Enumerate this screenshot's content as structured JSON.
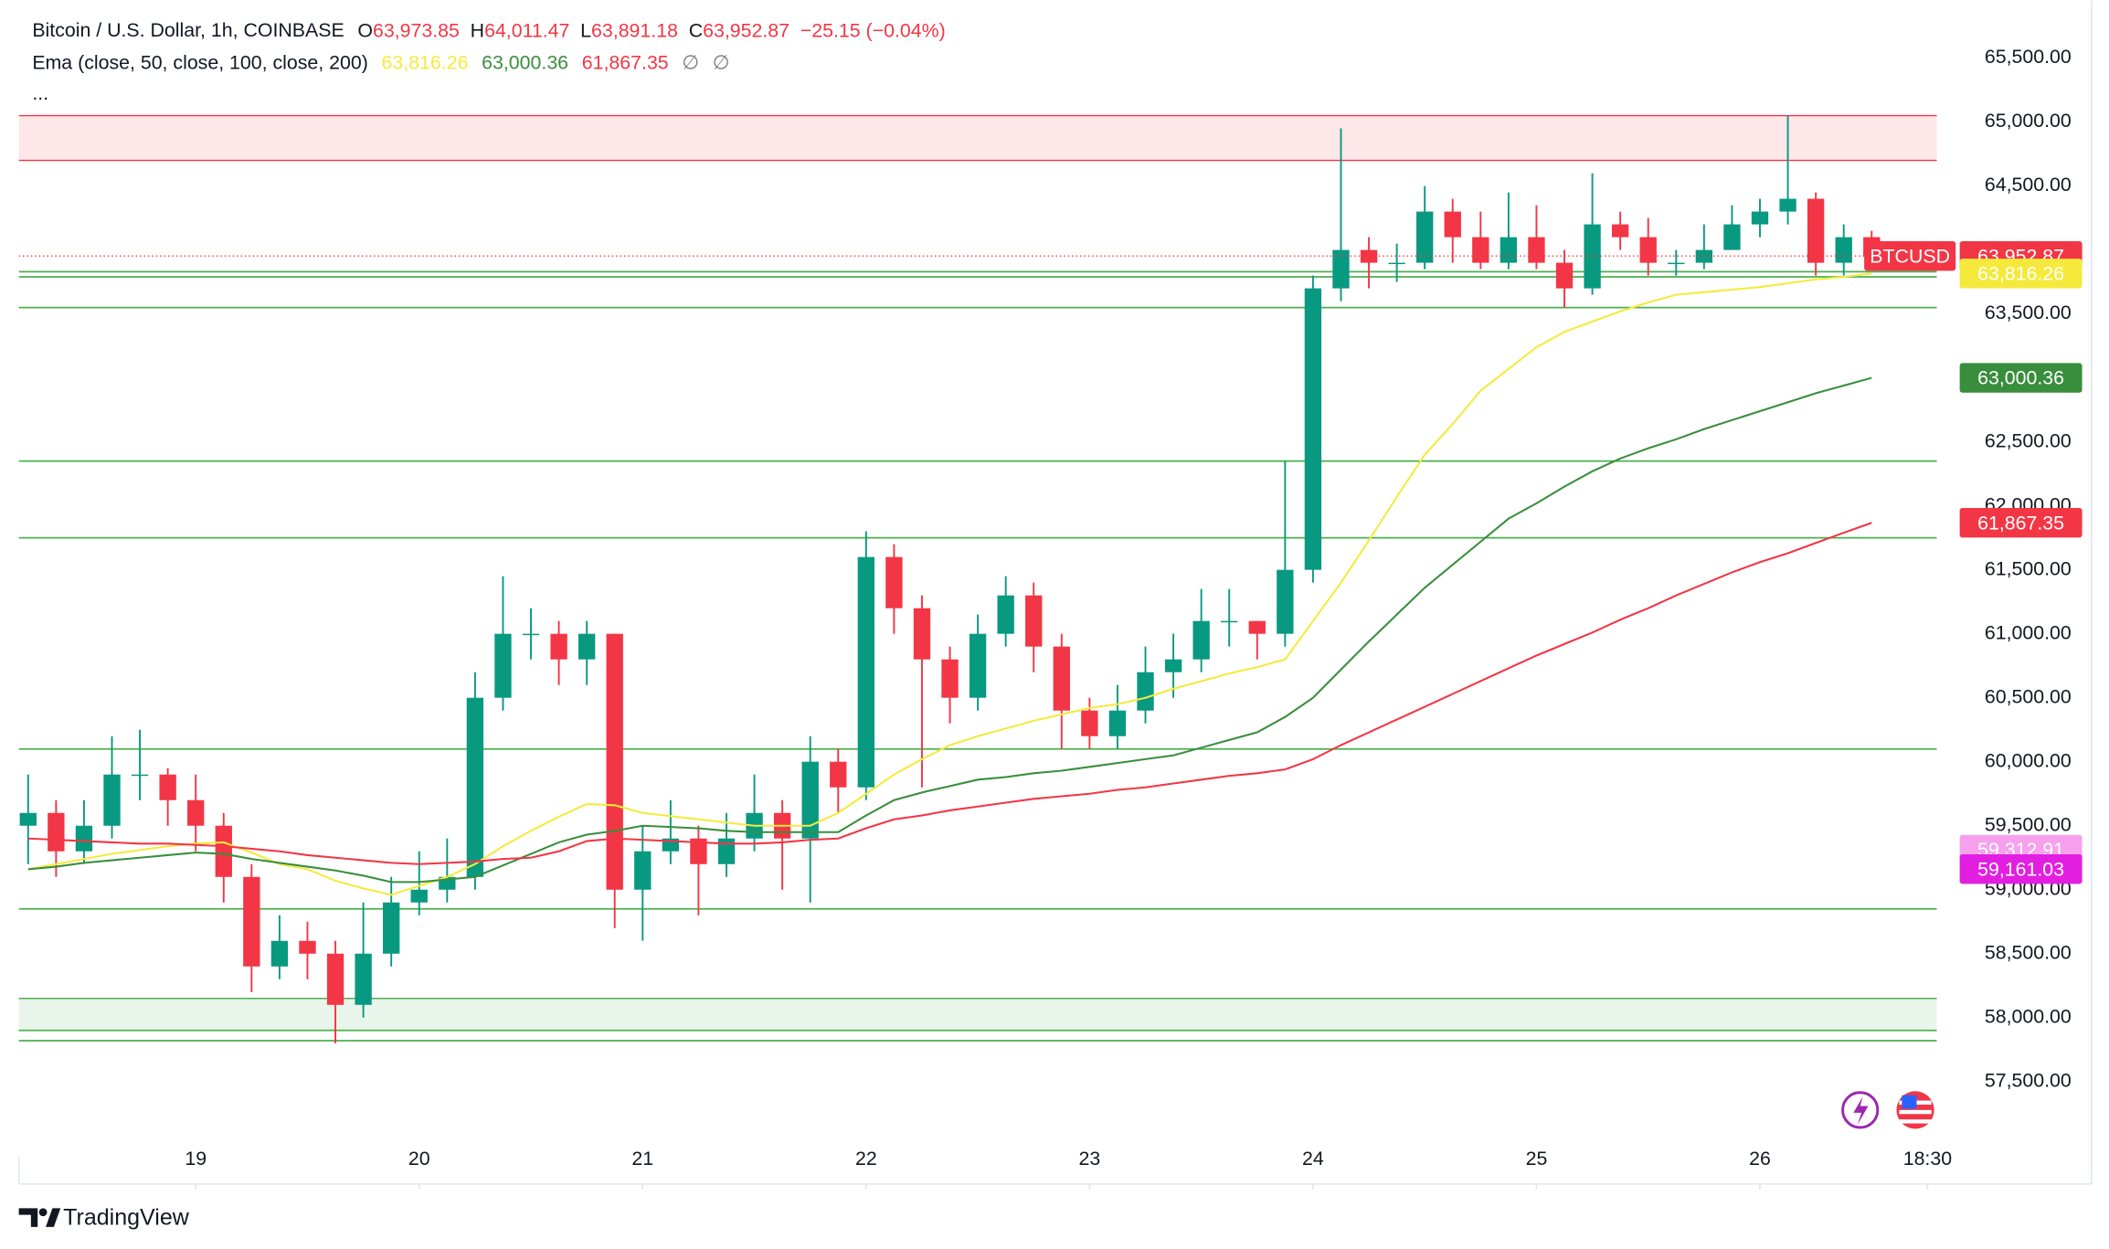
{
  "chart_data": {
    "type": "candlestick",
    "title": "Bitcoin / U.S. Dollar, 1h, COINBASE",
    "ohlc": [
      {
        "label": "O",
        "value": "63,973.85"
      },
      {
        "label": "H",
        "value": "64,011.47"
      },
      {
        "label": "L",
        "value": "63,891.18"
      },
      {
        "label": "C",
        "value": "63,952.87"
      }
    ],
    "change": "−25.15 (−0.04%)",
    "ema_label": "Ema (close, 50, close, 100, close, 200)",
    "ema_extra": [
      "∅",
      "∅"
    ],
    "more": "...",
    "up_color": "#089981",
    "down_color": "#f23645",
    "x": [
      -18,
      -15,
      -12,
      -9,
      -6,
      -3,
      0,
      3,
      6,
      9,
      12,
      15,
      18,
      21,
      24,
      27,
      30,
      33,
      36,
      39,
      42,
      45,
      48,
      51,
      54,
      57,
      60,
      63,
      66,
      69,
      72,
      75,
      78,
      81,
      84,
      87,
      90,
      93,
      96,
      99,
      102,
      105,
      108,
      111,
      114,
      117,
      120,
      123,
      126,
      129,
      132,
      135,
      138,
      141,
      144,
      147,
      150,
      153,
      156,
      159,
      162,
      165,
      168,
      171,
      174,
      177,
      180
    ],
    "open": [
      59500,
      59600,
      59300,
      59500,
      59900,
      59900,
      59700,
      59500,
      59100,
      58400,
      58600,
      58500,
      58100,
      58500,
      58900,
      59000,
      59100,
      60500,
      61000,
      61000,
      60800,
      61000,
      59000,
      59300,
      59400,
      59200,
      59400,
      59600,
      59400,
      60000,
      59800,
      61600,
      61200,
      60800,
      60500,
      61000,
      61300,
      60900,
      60400,
      60200,
      60400,
      60700,
      60800,
      61100,
      61100,
      61000,
      61500,
      63700,
      64000,
      63900,
      63900,
      64300,
      64100,
      63900,
      64100,
      63900,
      63700,
      64200,
      64100,
      63900,
      63900,
      64000,
      64200,
      64300,
      64400,
      63900,
      64100
    ],
    "high": [
      59900,
      59700,
      59700,
      60200,
      60250,
      59950,
      59900,
      59600,
      59200,
      58800,
      58750,
      58600,
      58900,
      59100,
      59300,
      59400,
      60700,
      61450,
      61200,
      61100,
      61100,
      61000,
      59500,
      59700,
      59500,
      59600,
      59900,
      59700,
      60200,
      60100,
      61800,
      61700,
      61300,
      60900,
      61150,
      61450,
      61400,
      61000,
      60500,
      60600,
      60900,
      61000,
      61350,
      61350,
      61100,
      62350,
      63800,
      64950,
      64100,
      64050,
      64500,
      64400,
      64300,
      64450,
      64350,
      64000,
      64600,
      64300,
      64250,
      64000,
      64200,
      64350,
      64400,
      65050,
      64450,
      64200,
      64150
    ],
    "low": [
      59200,
      59100,
      59200,
      59400,
      59700,
      59500,
      59300,
      58900,
      58200,
      58300,
      58300,
      57800,
      58000,
      58400,
      58800,
      58900,
      59000,
      60400,
      60800,
      60600,
      60600,
      58700,
      58600,
      59200,
      58800,
      59100,
      59300,
      59000,
      58900,
      59600,
      59700,
      61000,
      59800,
      60300,
      60400,
      60900,
      60700,
      60100,
      60100,
      60100,
      60300,
      60500,
      60700,
      60900,
      60800,
      60900,
      61400,
      63600,
      63700,
      63750,
      63850,
      63900,
      63850,
      63850,
      63850,
      63550,
      63650,
      64000,
      63800,
      63800,
      63850,
      64000,
      64100,
      64200,
      63800,
      63800,
      63850
    ],
    "close": [
      59600,
      59300,
      59500,
      59900,
      59900,
      59700,
      59500,
      59100,
      58400,
      58600,
      58500,
      58100,
      58500,
      58900,
      59000,
      59100,
      60500,
      61000,
      61000,
      60800,
      61000,
      59000,
      59300,
      59400,
      59200,
      59400,
      59600,
      59400,
      60000,
      59800,
      61600,
      61200,
      60800,
      60500,
      61000,
      61300,
      60900,
      60400,
      60200,
      60400,
      60700,
      60800,
      61100,
      61100,
      61000,
      61500,
      63700,
      64000,
      63900,
      63900,
      64300,
      64100,
      63900,
      64100,
      63900,
      63700,
      64200,
      64100,
      63900,
      63900,
      64000,
      64200,
      64300,
      64400,
      63900,
      64100,
      63952.87
    ],
    "ema_series": [
      {
        "color": "#f5ea3c",
        "tag_text_color": "#131722",
        "last_label": "63,816.26",
        "values": [
          59160,
          59200,
          59240,
          59280,
          59310,
          59340,
          59360,
          59370,
          59290,
          59200,
          59160,
          59070,
          59010,
          58960,
          59030,
          59100,
          59200,
          59340,
          59460,
          59570,
          59670,
          59660,
          59600,
          59575,
          59550,
          59525,
          59500,
          59500,
          59500,
          59600,
          59750,
          59900,
          60020,
          60130,
          60200,
          60260,
          60320,
          60370,
          60420,
          60450,
          60500,
          60570,
          60630,
          60690,
          60740,
          60800,
          61100,
          61400,
          61730,
          62070,
          62400,
          62640,
          62900,
          63070,
          63240,
          63360,
          63440,
          63520,
          63590,
          63650,
          63670,
          63690,
          63710,
          63740,
          63770,
          63790,
          63816.26
        ]
      },
      {
        "color": "#388e3c",
        "tag_text_color": "#ffffff",
        "last_label": "63,000.36",
        "values": [
          59160,
          59180,
          59210,
          59230,
          59250,
          59270,
          59290,
          59280,
          59240,
          59210,
          59180,
          59150,
          59110,
          59060,
          59060,
          59080,
          59100,
          59190,
          59280,
          59370,
          59430,
          59460,
          59500,
          59490,
          59480,
          59460,
          59450,
          59450,
          59450,
          59450,
          59580,
          59700,
          59760,
          59810,
          59860,
          59880,
          59910,
          59930,
          59960,
          59990,
          60020,
          60050,
          60110,
          60170,
          60230,
          60350,
          60500,
          60720,
          60940,
          61150,
          61360,
          61540,
          61720,
          61900,
          62020,
          62150,
          62270,
          62370,
          62450,
          62520,
          62600,
          62670,
          62740,
          62810,
          62880,
          62940,
          63000.36
        ]
      },
      {
        "color": "#f23645",
        "tag_text_color": "#ffffff",
        "last_label": "61,867.35",
        "values": [
          59400,
          59390,
          59380,
          59370,
          59360,
          59360,
          59350,
          59340,
          59320,
          59300,
          59270,
          59250,
          59230,
          59210,
          59200,
          59210,
          59220,
          59240,
          59250,
          59300,
          59380,
          59400,
          59390,
          59380,
          59370,
          59360,
          59360,
          59370,
          59390,
          59400,
          59480,
          59550,
          59580,
          59620,
          59650,
          59680,
          59710,
          59730,
          59750,
          59780,
          59800,
          59830,
          59860,
          59890,
          59910,
          59940,
          60020,
          60130,
          60230,
          60330,
          60430,
          60530,
          60630,
          60730,
          60830,
          60920,
          61010,
          61110,
          61200,
          61300,
          61390,
          61480,
          61560,
          61630,
          61710,
          61790,
          61867.35
        ]
      }
    ],
    "symbol": "BTCUSD",
    "last_price": 63952.87,
    "last_price_label": "63,952.87",
    "extra_tags": [
      {
        "value": 59312.91,
        "label": "59,312.91",
        "color": "#f7a1ee"
      },
      {
        "value": 59161.03,
        "label": "59,161.03",
        "color": "#e21ee0"
      }
    ],
    "resistance_zone": [
      64700,
      65050
    ],
    "support_zone": [
      57900,
      58150
    ],
    "levels": [
      63830,
      63790,
      63550,
      62350,
      61750,
      60100,
      58850,
      57900,
      57820
    ],
    "xlim": [
      -19,
      187
    ],
    "ylim": [
      56700,
      65950
    ],
    "xticks": [
      {
        "value": 0,
        "label": "19"
      },
      {
        "value": 24,
        "label": "20"
      },
      {
        "value": 48,
        "label": "21"
      },
      {
        "value": 72,
        "label": "22"
      },
      {
        "value": 96,
        "label": "23"
      },
      {
        "value": 120,
        "label": "24"
      },
      {
        "value": 144,
        "label": "25"
      },
      {
        "value": 168,
        "label": "26"
      },
      {
        "value": 186,
        "label": "18:30"
      }
    ],
    "yticks": [
      {
        "value": 57500,
        "label": "57,500.00"
      },
      {
        "value": 58000,
        "label": "58,000.00"
      },
      {
        "value": 58500,
        "label": "58,500.00"
      },
      {
        "value": 59000,
        "label": "59,000.00"
      },
      {
        "value": 59500,
        "label": "59,500.00"
      },
      {
        "value": 60000,
        "label": "60,000.00"
      },
      {
        "value": 60500,
        "label": "60,500.00"
      },
      {
        "value": 61000,
        "label": "61,000.00"
      },
      {
        "value": 61500,
        "label": "61,500.00"
      },
      {
        "value": 62000,
        "label": "62,000.00"
      },
      {
        "value": 62500,
        "label": "62,500.00"
      },
      {
        "value": 63000,
        "label": "63,000.00"
      },
      {
        "value": 63500,
        "label": "63,500.00"
      },
      {
        "value": 64000,
        "label": "64,000.00"
      },
      {
        "value": 64500,
        "label": "64,500.00"
      },
      {
        "value": 65000,
        "label": "65,000.00"
      },
      {
        "value": 65500,
        "label": "65,500.00"
      }
    ],
    "grid": false,
    "brand": "TradingView"
  }
}
